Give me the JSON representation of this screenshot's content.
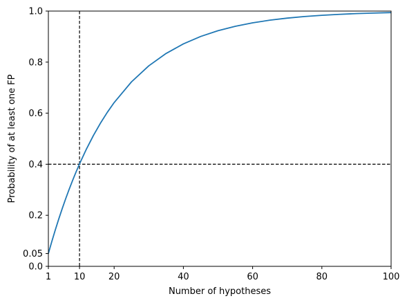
{
  "chart_data": {
    "type": "line",
    "title": "",
    "xlabel": "Number of hypotheses",
    "ylabel": "Probability of at least one FP",
    "xlim": [
      1,
      100
    ],
    "ylim": [
      0.0,
      1.0
    ],
    "xticks": [
      1,
      10,
      20,
      40,
      60,
      80,
      100
    ],
    "yticks": [
      0.0,
      0.05,
      0.2,
      0.4,
      0.6,
      0.8,
      1.0
    ],
    "xtick_labels": [
      "1",
      "10",
      "20",
      "40",
      "60",
      "80",
      "100"
    ],
    "ytick_labels": [
      "0.0",
      "0.05",
      "0.2",
      "0.4",
      "0.6",
      "0.8",
      "1.0"
    ],
    "grid": false,
    "series": [
      {
        "color": "#1f77b4",
        "x": [
          1,
          2,
          3,
          4,
          5,
          6,
          7,
          8,
          9,
          10,
          12,
          14,
          16,
          18,
          20,
          25,
          30,
          35,
          40,
          45,
          50,
          55,
          60,
          65,
          70,
          75,
          80,
          85,
          90,
          95,
          100
        ],
        "y": [
          0.05,
          0.0975,
          0.1426,
          0.1855,
          0.2262,
          0.2649,
          0.3017,
          0.3366,
          0.3698,
          0.4013,
          0.4596,
          0.5123,
          0.5599,
          0.6028,
          0.6415,
          0.7226,
          0.7854,
          0.8339,
          0.8715,
          0.9006,
          0.9231,
          0.9405,
          0.9539,
          0.9644,
          0.9724,
          0.9787,
          0.9835,
          0.9872,
          0.9901,
          0.9923,
          0.9941
        ]
      }
    ],
    "reference_lines": [
      {
        "orientation": "vertical",
        "value": 10,
        "style": "dashed",
        "color": "#000000"
      },
      {
        "orientation": "horizontal",
        "value": 0.4,
        "style": "dashed",
        "color": "#000000"
      }
    ]
  }
}
